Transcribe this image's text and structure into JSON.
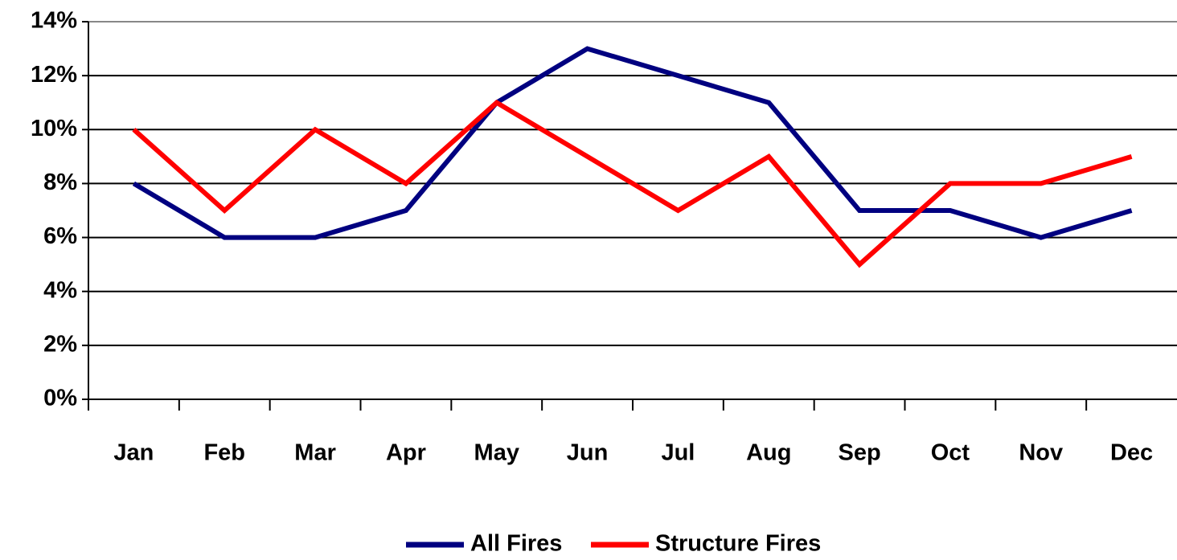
{
  "chart_data": {
    "type": "line",
    "categories": [
      "Jan",
      "Feb",
      "Mar",
      "Apr",
      "May",
      "Jun",
      "Jul",
      "Aug",
      "Sep",
      "Oct",
      "Nov",
      "Dec"
    ],
    "series": [
      {
        "name": "All Fires",
        "color": "#000080",
        "values": [
          8,
          6,
          6,
          7,
          11,
          13,
          12,
          11,
          7,
          7,
          6,
          7
        ]
      },
      {
        "name": "Structure Fires",
        "color": "#ff0000",
        "values": [
          10,
          7,
          10,
          8,
          11,
          9,
          7,
          9,
          5,
          8,
          8,
          9
        ]
      }
    ],
    "ylim": [
      0,
      14
    ],
    "yticks": [
      {
        "value": 0,
        "label": "0%"
      },
      {
        "value": 2,
        "label": "2%"
      },
      {
        "value": 4,
        "label": "4%"
      },
      {
        "value": 6,
        "label": "6%"
      },
      {
        "value": 8,
        "label": "8%"
      },
      {
        "value": 10,
        "label": "10%"
      },
      {
        "value": 12,
        "label": "12%"
      },
      {
        "value": 14,
        "label": "14%"
      }
    ],
    "grid": true
  }
}
